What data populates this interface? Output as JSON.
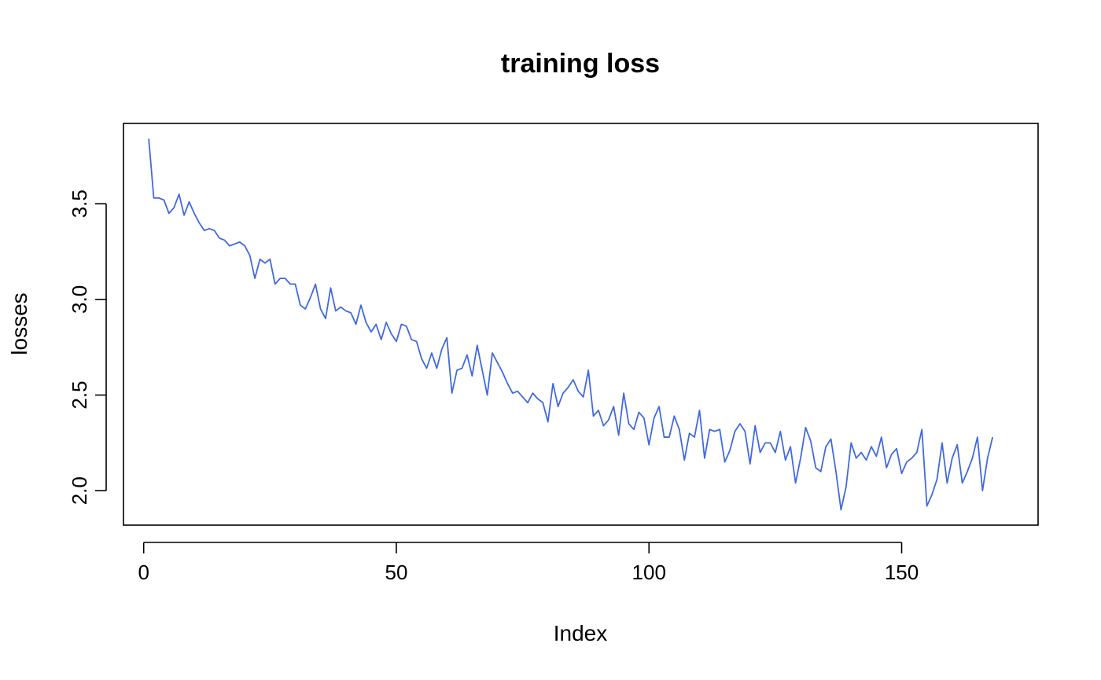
{
  "chart_data": {
    "type": "line",
    "title": "training loss",
    "xlabel": "Index",
    "ylabel": "losses",
    "xlim": [
      -4,
      177
    ],
    "ylim": [
      1.82,
      3.92
    ],
    "x_ticks": [
      0,
      50,
      100,
      150
    ],
    "x_tick_labels": [
      "0",
      "50",
      "100",
      "150"
    ],
    "y_ticks": [
      2.0,
      2.5,
      3.0,
      3.5
    ],
    "y_tick_labels": [
      "2.0",
      "2.5",
      "3.0",
      "3.5"
    ],
    "grid": false,
    "legend": "none",
    "series": [
      {
        "color": "#4169E1",
        "x_start": 1,
        "values": [
          3.84,
          3.53,
          3.53,
          3.52,
          3.45,
          3.48,
          3.55,
          3.44,
          3.51,
          3.45,
          3.4,
          3.36,
          3.37,
          3.36,
          3.32,
          3.31,
          3.28,
          3.29,
          3.3,
          3.28,
          3.23,
          3.11,
          3.21,
          3.19,
          3.21,
          3.08,
          3.11,
          3.11,
          3.08,
          3.08,
          2.97,
          2.95,
          3.01,
          3.08,
          2.95,
          2.9,
          3.06,
          2.94,
          2.96,
          2.94,
          2.93,
          2.87,
          2.97,
          2.88,
          2.83,
          2.87,
          2.79,
          2.88,
          2.82,
          2.78,
          2.87,
          2.86,
          2.79,
          2.78,
          2.69,
          2.64,
          2.72,
          2.64,
          2.74,
          2.8,
          2.51,
          2.63,
          2.64,
          2.71,
          2.6,
          2.76,
          2.63,
          2.5,
          2.72,
          2.67,
          2.62,
          2.56,
          2.51,
          2.52,
          2.49,
          2.46,
          2.51,
          2.48,
          2.46,
          2.36,
          2.56,
          2.44,
          2.51,
          2.54,
          2.58,
          2.52,
          2.49,
          2.63,
          2.39,
          2.42,
          2.34,
          2.37,
          2.44,
          2.29,
          2.51,
          2.35,
          2.32,
          2.41,
          2.38,
          2.24,
          2.38,
          2.44,
          2.28,
          2.28,
          2.39,
          2.32,
          2.16,
          2.3,
          2.28,
          2.42,
          2.17,
          2.32,
          2.31,
          2.32,
          2.15,
          2.21,
          2.31,
          2.35,
          2.31,
          2.14,
          2.34,
          2.2,
          2.25,
          2.25,
          2.2,
          2.31,
          2.16,
          2.23,
          2.04,
          2.17,
          2.33,
          2.26,
          2.12,
          2.1,
          2.23,
          2.27,
          2.1,
          1.9,
          2.02,
          2.25,
          2.17,
          2.2,
          2.16,
          2.23,
          2.18,
          2.28,
          2.12,
          2.19,
          2.22,
          2.09,
          2.15,
          2.17,
          2.2,
          2.32,
          1.92,
          1.98,
          2.06,
          2.25,
          2.04,
          2.17,
          2.24,
          2.04,
          2.1,
          2.17,
          2.28,
          2.0,
          2.17,
          2.28
        ]
      }
    ]
  }
}
